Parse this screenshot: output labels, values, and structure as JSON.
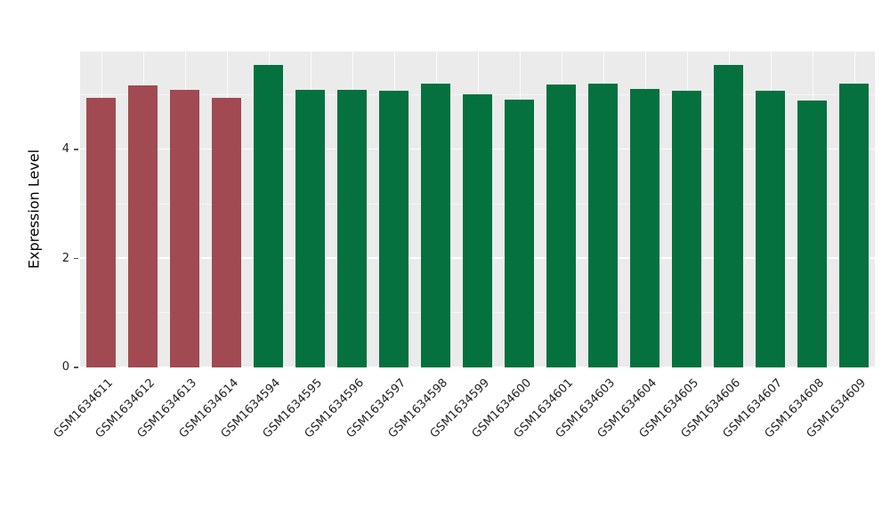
{
  "chart_data": {
    "type": "bar",
    "title": "",
    "xlabel": "",
    "ylabel": "Expression Level",
    "ylim": [
      0,
      5.8
    ],
    "yticks": [
      0,
      2,
      4
    ],
    "yticks_minor": [
      1,
      3,
      5
    ],
    "grid": "on",
    "legend": "none",
    "panel_bg": "#EBEBEB",
    "grid_color": "#FFFFFF",
    "bar_width_ratio": 0.7,
    "categories": [
      "GSM1634611",
      "GSM1634612",
      "GSM1634613",
      "GSM1634614",
      "GSM1634594",
      "GSM1634595",
      "GSM1634596",
      "GSM1634597",
      "GSM1634598",
      "GSM1634599",
      "GSM1634600",
      "GSM1634601",
      "GSM1634603",
      "GSM1634604",
      "GSM1634605",
      "GSM1634606",
      "GSM1634607",
      "GSM1634608",
      "GSM1634609"
    ],
    "values": [
      4.95,
      5.18,
      5.1,
      4.95,
      5.55,
      5.1,
      5.1,
      5.08,
      5.22,
      5.02,
      4.92,
      5.2,
      5.22,
      5.12,
      5.08,
      5.55,
      5.08,
      4.9,
      5.22
    ],
    "groups": [
      "red",
      "red",
      "red",
      "red",
      "green",
      "green",
      "green",
      "green",
      "green",
      "green",
      "green",
      "green",
      "green",
      "green",
      "green",
      "green",
      "green",
      "green",
      "green"
    ],
    "group_colors": {
      "red": "#A14A52",
      "green": "#04713F"
    }
  }
}
